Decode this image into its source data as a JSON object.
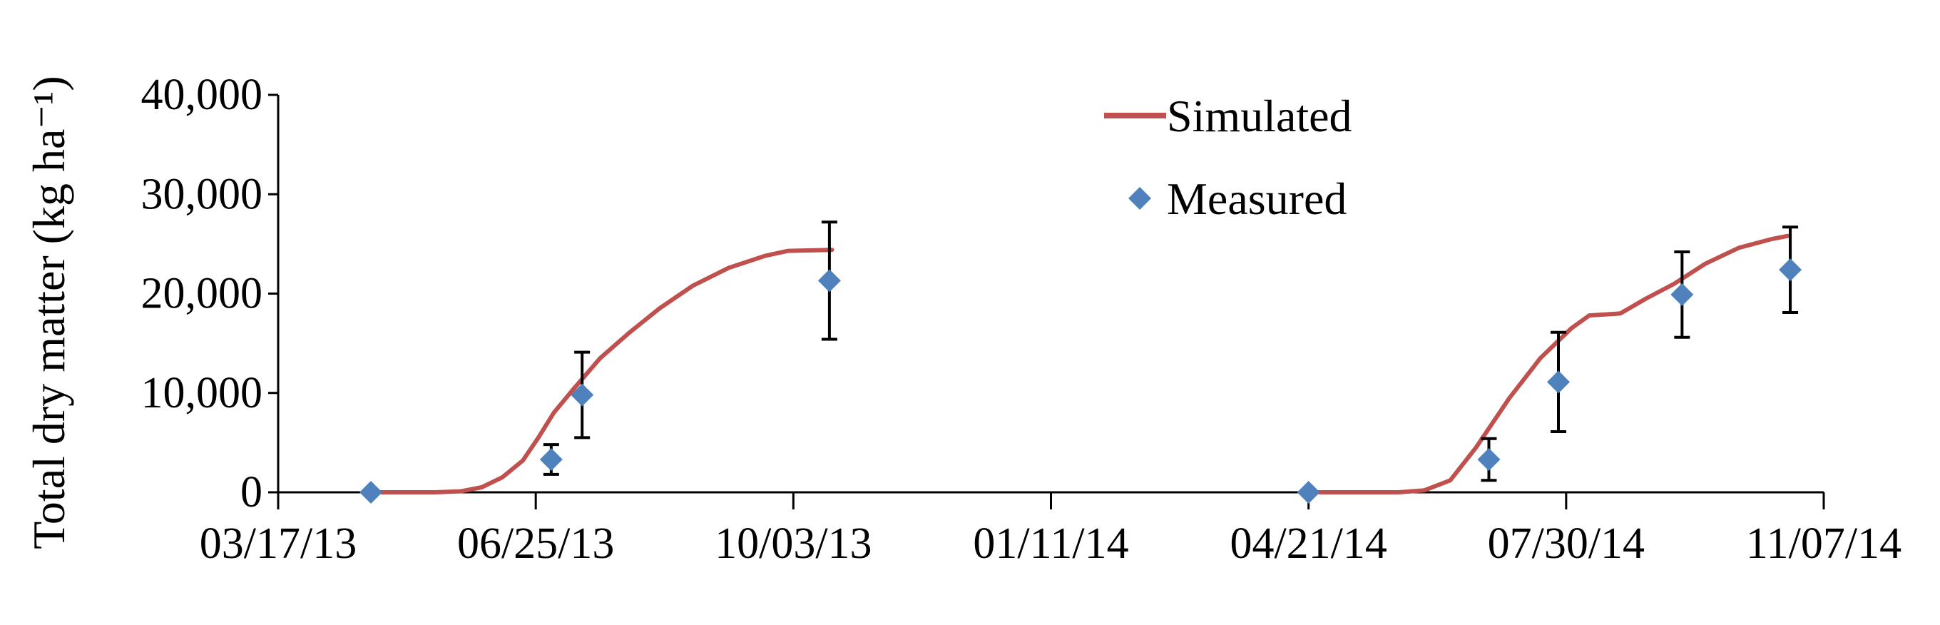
{
  "chart_data": {
    "type": "line",
    "title": "",
    "xlabel": "",
    "ylabel": "Total dry matter (kg ha⁻¹)",
    "ylim": [
      0,
      40000
    ],
    "xlim": [
      "2013-03-17",
      "2014-11-07"
    ],
    "yticks": [
      "0",
      "10,000",
      "20,000",
      "30,000",
      "40,000"
    ],
    "ytick_values": [
      0,
      10000,
      20000,
      30000,
      40000
    ],
    "xticks": [
      "03/17/13",
      "06/25/13",
      "10/03/13",
      "01/11/14",
      "04/21/14",
      "07/30/14",
      "11/07/14"
    ],
    "xtick_values": [
      "2013-03-17",
      "2013-06-25",
      "2013-10-03",
      "2014-01-11",
      "2014-04-21",
      "2014-07-30",
      "2014-11-07"
    ],
    "grid": false,
    "legend_position": "top-center",
    "colors": {
      "simulated": "#c0504d",
      "measured": "#4f81bd",
      "error_bar": "#000000",
      "axis": "#000000"
    },
    "series": [
      {
        "name": "Simulated",
        "kind": "line",
        "segments": [
          [
            [
              "2013-04-22",
              0
            ],
            [
              "2013-05-17",
              0
            ],
            [
              "2013-05-27",
              100
            ],
            [
              "2013-06-04",
              500
            ],
            [
              "2013-06-12",
              1500
            ],
            [
              "2013-06-20",
              3200
            ],
            [
              "2013-06-26",
              5500
            ],
            [
              "2013-07-02",
              8000
            ],
            [
              "2013-07-10",
              10500
            ],
            [
              "2013-07-20",
              13500
            ],
            [
              "2013-07-31",
              16000
            ],
            [
              "2013-08-12",
              18500
            ],
            [
              "2013-08-25",
              20800
            ],
            [
              "2013-09-08",
              22600
            ],
            [
              "2013-09-22",
              23800
            ],
            [
              "2013-10-01",
              24300
            ],
            [
              "2013-10-18",
              24400
            ]
          ],
          [
            [
              "2014-04-21",
              0
            ],
            [
              "2014-05-26",
              0
            ],
            [
              "2014-06-05",
              200
            ],
            [
              "2014-06-15",
              1200
            ],
            [
              "2014-06-25",
              4500
            ],
            [
              "2014-07-08",
              9500
            ],
            [
              "2014-07-20",
              13500
            ],
            [
              "2014-08-01",
              16500
            ],
            [
              "2014-08-08",
              17800
            ],
            [
              "2014-08-20",
              18000
            ],
            [
              "2014-08-30",
              19500
            ],
            [
              "2014-09-10",
              21000
            ],
            [
              "2014-09-22",
              23000
            ],
            [
              "2014-10-05",
              24600
            ],
            [
              "2014-10-18",
              25500
            ],
            [
              "2014-10-24",
              25800
            ]
          ]
        ]
      },
      {
        "name": "Measured",
        "kind": "scatter",
        "points": [
          {
            "x": "2013-04-22",
            "y": 0,
            "err": 0
          },
          {
            "x": "2013-07-01",
            "y": 3300,
            "err": 1500
          },
          {
            "x": "2013-07-13",
            "y": 9800,
            "err": 4300
          },
          {
            "x": "2013-10-17",
            "y": 21300,
            "err": 5900
          },
          {
            "x": "2014-04-21",
            "y": 0,
            "err": 0
          },
          {
            "x": "2014-06-30",
            "y": 3300,
            "err": 2100
          },
          {
            "x": "2014-07-27",
            "y": 11100,
            "err": 5000
          },
          {
            "x": "2014-09-13",
            "y": 19900,
            "err": 4300
          },
          {
            "x": "2014-10-25",
            "y": 22400,
            "err": 4300
          }
        ]
      }
    ]
  }
}
